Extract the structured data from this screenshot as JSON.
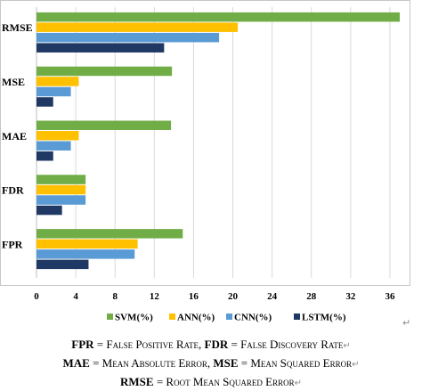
{
  "chart_data": {
    "type": "bar",
    "orientation": "horizontal",
    "categories": [
      "RMSE",
      "MSE",
      "MAE",
      "FDR",
      "FPR"
    ],
    "series": [
      {
        "name": "SVM(%)",
        "color": "#70ad47",
        "values": [
          37.0,
          13.8,
          13.7,
          5.0,
          14.9
        ]
      },
      {
        "name": "ANN(%)",
        "color": "#ffc000",
        "values": [
          20.5,
          4.3,
          4.3,
          5.0,
          10.3
        ]
      },
      {
        "name": "CNN(%)",
        "color": "#5b9bd5",
        "values": [
          18.6,
          3.5,
          3.5,
          5.0,
          10.0
        ]
      },
      {
        "name": "LSTM(%)",
        "color": "#1f3864",
        "values": [
          13.0,
          1.7,
          1.7,
          2.6,
          5.3
        ]
      }
    ],
    "xlim": [
      0,
      38
    ],
    "xticks": [
      0,
      4,
      8,
      12,
      16,
      20,
      24,
      28,
      32,
      36
    ],
    "grid": true,
    "legend": "bottom"
  },
  "captions": [
    {
      "key": "FPR",
      "eq": " = ",
      "def": "False Positive Rate",
      "sep": ", ",
      "key2": "FDR",
      "eq2": " = ",
      "def2": "False Discovery Rate",
      "mark": "↵"
    },
    {
      "key": "MAE",
      "eq": " = ",
      "def": "Mean Absolute Error",
      "sep": ", ",
      "key2": "MSE",
      "eq2": " = ",
      "def2": "Mean Squared Error",
      "mark": "↵"
    },
    {
      "key": "RMSE",
      "eq": " = ",
      "def": "Root Mean Squared Error",
      "mark": "↵"
    }
  ],
  "return_mark": "↵"
}
